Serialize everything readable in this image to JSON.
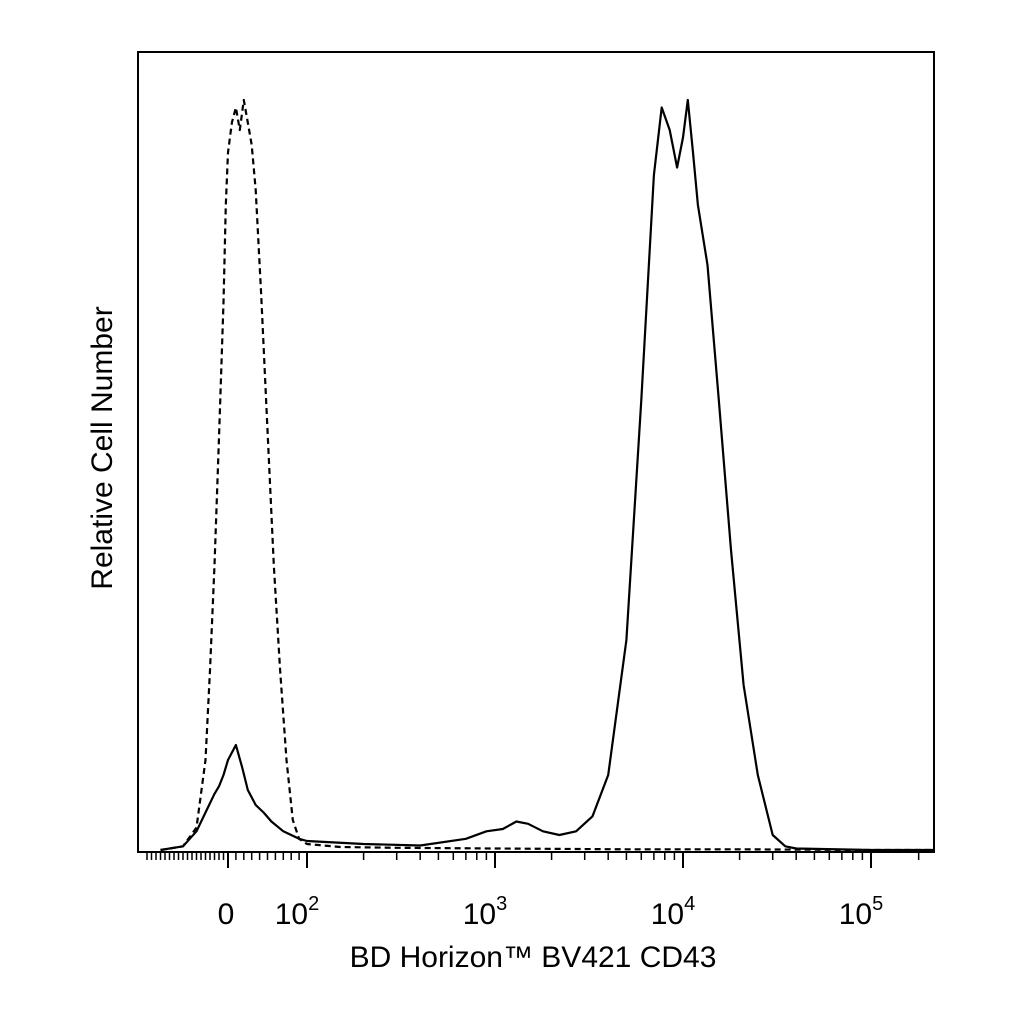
{
  "chart_data": {
    "type": "line",
    "title": "",
    "xlabel": "BD Horizon™ BV421 CD43",
    "ylabel": "Relative Cell Number",
    "x_scale": "biexponential",
    "xlim": [
      -200,
      250000
    ],
    "ylim": [
      0,
      100
    ],
    "grid": false,
    "legend": "none",
    "x_ticks": [
      {
        "value": 0,
        "base": "0",
        "exp": ""
      },
      {
        "value": 100,
        "base": "10",
        "exp": "2"
      },
      {
        "value": 1000,
        "base": "10",
        "exp": "3"
      },
      {
        "value": 10000,
        "base": "10",
        "exp": "4"
      },
      {
        "value": 100000,
        "base": "10",
        "exp": "5"
      }
    ],
    "series": [
      {
        "style": "dashed",
        "color": "#000000",
        "points": [
          [
            -150,
            0
          ],
          [
            -100,
            0.5
          ],
          [
            -70,
            3
          ],
          [
            -50,
            12
          ],
          [
            -40,
            24
          ],
          [
            -30,
            38
          ],
          [
            -20,
            55
          ],
          [
            -10,
            73
          ],
          [
            -5,
            86
          ],
          [
            0,
            93
          ],
          [
            5,
            97
          ],
          [
            10,
            99
          ],
          [
            15,
            96
          ],
          [
            20,
            100
          ],
          [
            25,
            97
          ],
          [
            30,
            94
          ],
          [
            35,
            88
          ],
          [
            42,
            74
          ],
          [
            50,
            56
          ],
          [
            58,
            38
          ],
          [
            66,
            24
          ],
          [
            74,
            12
          ],
          [
            82,
            4
          ],
          [
            90,
            1.5
          ],
          [
            100,
            0.8
          ],
          [
            150,
            0.4
          ],
          [
            300,
            0.3
          ],
          [
            1000,
            0.2
          ],
          [
            5000,
            0.1
          ],
          [
            20000,
            0.1
          ],
          [
            100000,
            0
          ],
          [
            250000,
            0
          ]
        ]
      },
      {
        "style": "solid",
        "color": "#000000",
        "points": [
          [
            -150,
            0
          ],
          [
            -100,
            0.5
          ],
          [
            -70,
            2.5
          ],
          [
            -50,
            5
          ],
          [
            -30,
            7.5
          ],
          [
            -20,
            8.5
          ],
          [
            -10,
            10
          ],
          [
            0,
            12
          ],
          [
            10,
            14
          ],
          [
            18,
            11
          ],
          [
            25,
            8
          ],
          [
            35,
            6
          ],
          [
            45,
            5
          ],
          [
            55,
            3.8
          ],
          [
            70,
            2.5
          ],
          [
            90,
            1.5
          ],
          [
            100,
            1.2
          ],
          [
            200,
            0.8
          ],
          [
            400,
            0.6
          ],
          [
            700,
            1.5
          ],
          [
            900,
            2.5
          ],
          [
            1100,
            2.8
          ],
          [
            1300,
            3.8
          ],
          [
            1500,
            3.5
          ],
          [
            1800,
            2.5
          ],
          [
            2200,
            2.0
          ],
          [
            2700,
            2.5
          ],
          [
            3300,
            4.5
          ],
          [
            4000,
            10
          ],
          [
            5000,
            28
          ],
          [
            6000,
            60
          ],
          [
            7000,
            90
          ],
          [
            7700,
            99
          ],
          [
            8500,
            96
          ],
          [
            9300,
            91
          ],
          [
            10000,
            95
          ],
          [
            10600,
            100
          ],
          [
            11300,
            93
          ],
          [
            12000,
            86
          ],
          [
            13500,
            78
          ],
          [
            15500,
            60
          ],
          [
            18000,
            40
          ],
          [
            21000,
            22
          ],
          [
            25000,
            10
          ],
          [
            30000,
            2
          ],
          [
            35000,
            0.5
          ],
          [
            40000,
            0.2
          ],
          [
            100000,
            0
          ],
          [
            250000,
            0
          ]
        ]
      }
    ]
  }
}
